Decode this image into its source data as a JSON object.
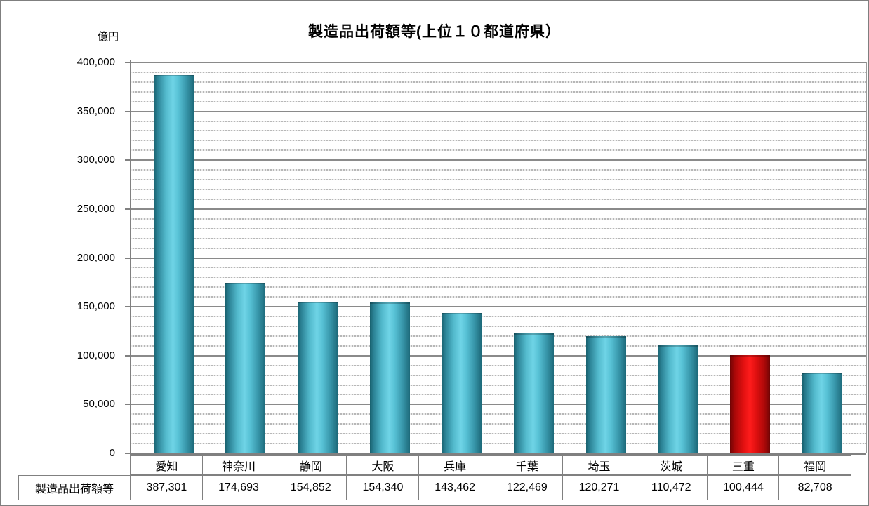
{
  "title": "製造品出荷額等(上位１０都道府県）",
  "unit_label": "億円",
  "y_axis": {
    "tick_labels": [
      "0",
      "50,000",
      "100,000",
      "150,000",
      "200,000",
      "250,000",
      "300,000",
      "350,000",
      "400,000"
    ]
  },
  "chart_data": {
    "type": "bar",
    "title": "製造品出荷額等(上位１０都道府県）",
    "ylabel": "億円",
    "categories": [
      "愛知",
      "神奈川",
      "静岡",
      "大阪",
      "兵庫",
      "千葉",
      "埼玉",
      "茨城",
      "三重",
      "福岡"
    ],
    "series": [
      {
        "name": "製造品出荷額等",
        "values": [
          387301,
          174693,
          154852,
          154340,
          143462,
          122469,
          120271,
          110472,
          100444,
          82708
        ]
      }
    ],
    "ylim": [
      0,
      400000
    ],
    "y_major_step": 50000,
    "y_minor_step": 10000,
    "grid": true,
    "legend_position": "none",
    "bar_color": "#45aec4",
    "highlight": {
      "index": 8,
      "category": "三重",
      "color": "#ee1111"
    }
  },
  "table": {
    "row_header": "製造品出荷額等",
    "categories": [
      "愛知",
      "神奈川",
      "静岡",
      "大阪",
      "兵庫",
      "千葉",
      "埼玉",
      "茨城",
      "三重",
      "福岡"
    ],
    "values_formatted": [
      "387,301",
      "174,693",
      "154,852",
      "154,340",
      "143,462",
      "122,469",
      "120,271",
      "110,472",
      "100,444",
      "82,708"
    ]
  }
}
